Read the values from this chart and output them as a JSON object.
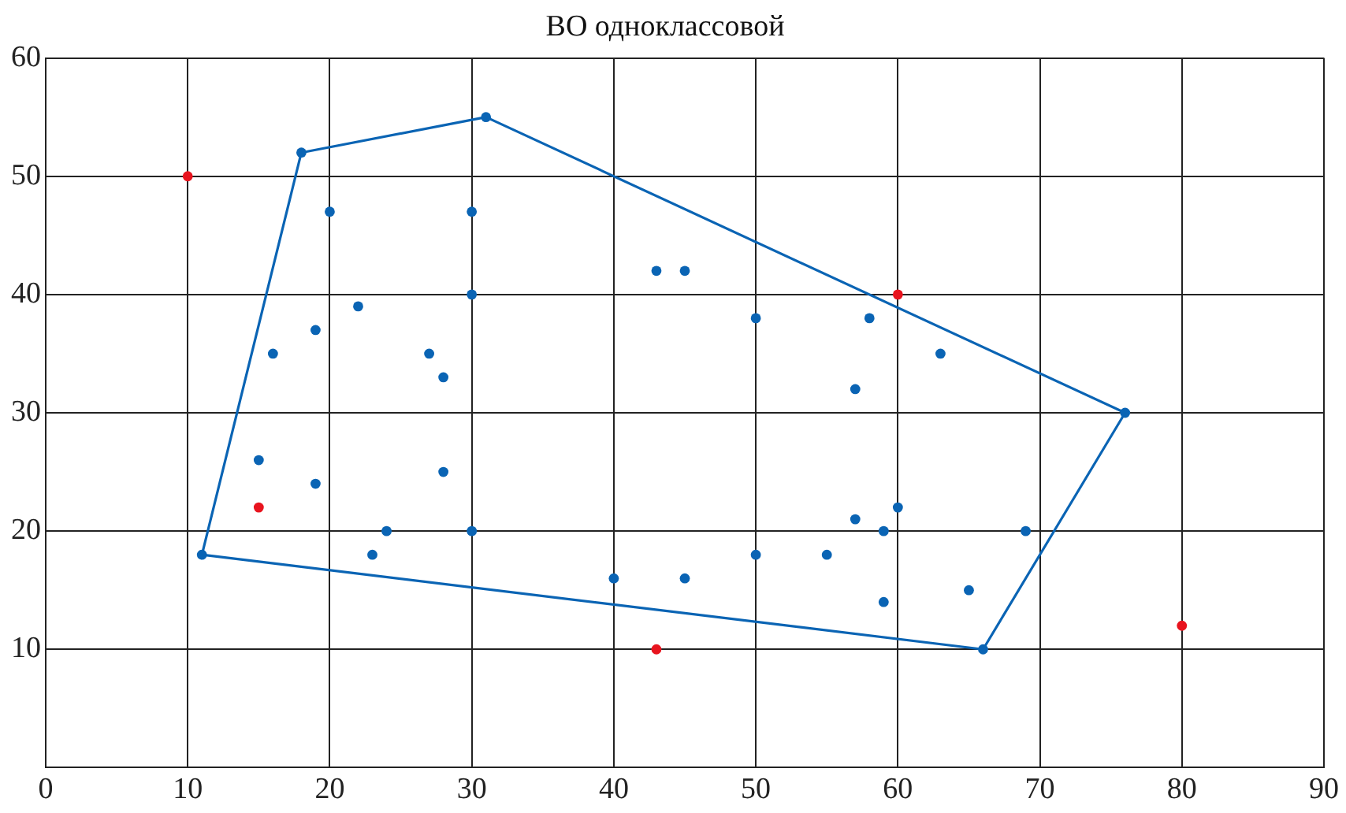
{
  "chart_data": {
    "type": "scatter",
    "title": "ВО одноклассовой",
    "xlim": [
      0,
      90
    ],
    "xticks": [
      0,
      10,
      20,
      30,
      40,
      50,
      60,
      70,
      80,
      90
    ],
    "ylim": [
      0,
      60
    ],
    "yticks": [
      {
        "value": 0,
        "label": null
      },
      10,
      20,
      30,
      40,
      50,
      60
    ],
    "grid": true,
    "legend": false,
    "marker": "circle",
    "series": [
      {
        "color": "#0a64b4",
        "x": [
          11,
          18,
          31,
          76,
          66,
          20,
          30,
          30,
          22,
          19,
          16,
          27,
          28,
          15,
          28,
          19,
          24,
          23,
          30,
          40,
          45,
          43,
          45,
          50,
          58,
          57,
          63,
          57,
          60,
          59,
          69,
          50,
          55,
          65,
          59
        ],
        "values": [
          18,
          52,
          55,
          30,
          10,
          47,
          47,
          40,
          39,
          37,
          35,
          35,
          33,
          26,
          25,
          24,
          20,
          18,
          20,
          16,
          16,
          42,
          42,
          38,
          38,
          32,
          35,
          21,
          22,
          20,
          20,
          18,
          18,
          15,
          14
        ]
      },
      {
        "type": "line",
        "marker": "none",
        "line_style": "solid",
        "color": "#0a64b4",
        "x": [
          11,
          18,
          31,
          76
        ],
        "values": [
          18,
          52,
          55,
          30
        ]
      },
      {
        "type": "line",
        "marker": "none",
        "line_style": "solid",
        "color": "#0a64b4",
        "x": [
          11,
          66,
          76
        ],
        "values": [
          18,
          10,
          30
        ]
      },
      {
        "color": "#e8141e",
        "x": [
          10,
          15,
          43,
          60,
          80
        ],
        "values": [
          50,
          22,
          10,
          40,
          12
        ]
      }
    ]
  }
}
